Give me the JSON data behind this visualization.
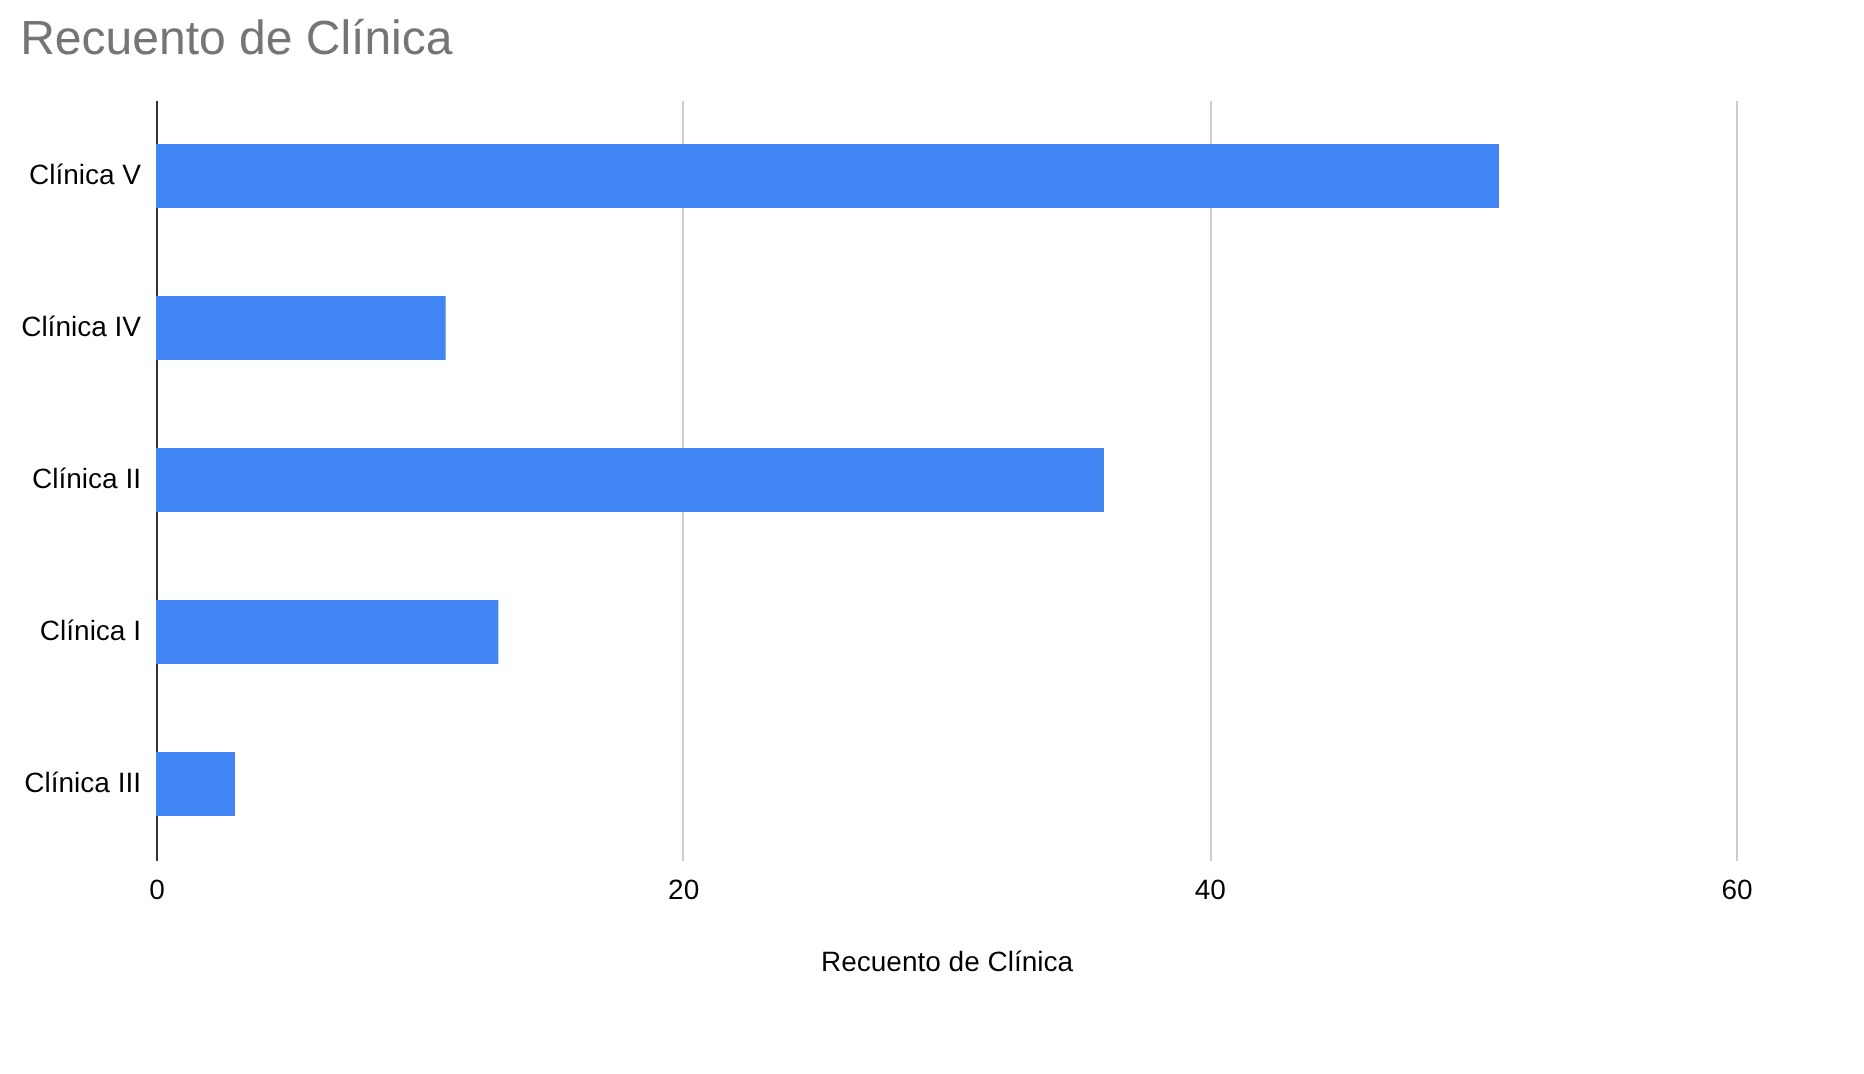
{
  "chart_data": {
    "type": "bar",
    "orientation": "horizontal",
    "title": "Recuento de Clínica",
    "xlabel": "Recuento de Clínica",
    "categories": [
      "Clínica V",
      "Clínica IV",
      "Clínica II",
      "Clínica I",
      "Clínica III"
    ],
    "values": [
      51,
      11,
      36,
      13,
      3
    ],
    "color": "#4285f4",
    "xlim": [
      0,
      60
    ],
    "xticks": [
      0,
      20,
      40,
      60
    ],
    "grid": "x"
  }
}
